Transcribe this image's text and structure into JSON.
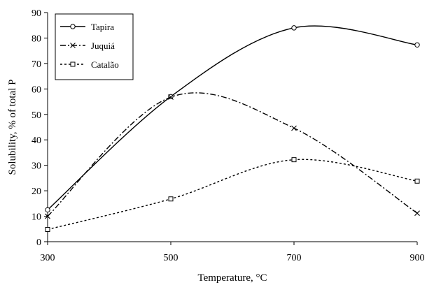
{
  "chart_data": {
    "type": "line",
    "title": "",
    "xlabel": "Temperature, °C",
    "ylabel": "Solubility, % of total P",
    "x": [
      300,
      500,
      700,
      900
    ],
    "xticks": [
      "300",
      "500",
      "700",
      "900"
    ],
    "xlim": [
      300,
      900
    ],
    "ylim": [
      0,
      90
    ],
    "yticks": [
      "0",
      "10",
      "20",
      "30",
      "40",
      "50",
      "60",
      "70",
      "80",
      "90"
    ],
    "grid": false,
    "legend_position": "top-left",
    "series": [
      {
        "name": "Tapira",
        "values": [
          12.5,
          57,
          84,
          77.3
        ],
        "marker": "circle",
        "line": "solid",
        "color": "#000000"
      },
      {
        "name": "Juquiá",
        "values": [
          10,
          56.8,
          44.6,
          11.2
        ],
        "marker": "x",
        "line": "dash-dot",
        "color": "#000000"
      },
      {
        "name": "Catalão",
        "values": [
          4.8,
          16.8,
          32.2,
          23.8
        ],
        "marker": "square",
        "line": "dotted",
        "color": "#000000"
      }
    ]
  }
}
